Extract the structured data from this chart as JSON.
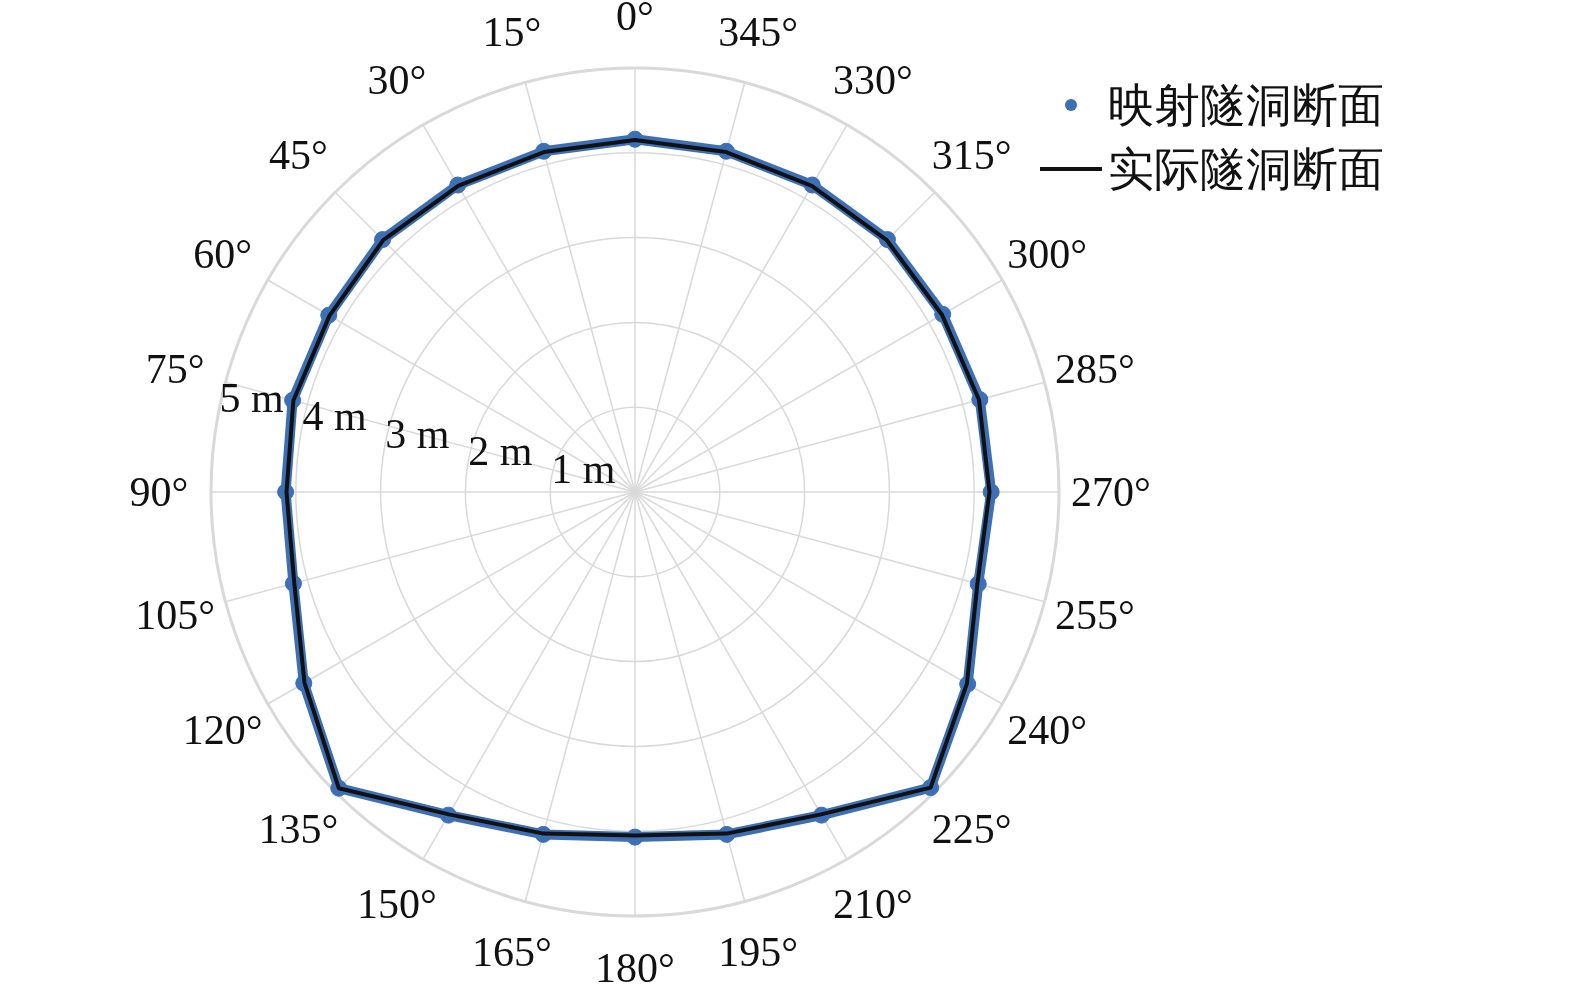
{
  "chart_data": {
    "type": "radar",
    "categories": [
      "0°",
      "345°",
      "330°",
      "315°",
      "300°",
      "285°",
      "270°",
      "255°",
      "240°",
      "225°",
      "210°",
      "195°",
      "180°",
      "165°",
      "150°",
      "135°",
      "120°",
      "105°",
      "90°",
      "75°",
      "60°",
      "45°",
      "30°",
      "15°"
    ],
    "series": [
      {
        "name": "实际隧洞断面",
        "color": "#111111",
        "marker": "none",
        "line_style": "solid",
        "values": [
          4.15,
          4.15,
          4.17,
          4.2,
          4.18,
          4.2,
          4.18,
          4.18,
          4.52,
          4.93,
          4.39,
          4.17,
          4.05,
          4.17,
          4.39,
          4.94,
          4.5,
          4.16,
          4.11,
          4.17,
          4.16,
          4.2,
          4.17,
          4.15
        ]
      },
      {
        "name": "映射隧洞断面",
        "color": "#3d6fb6",
        "marker": "circle",
        "line_style": "solid",
        "values": [
          4.16,
          4.16,
          4.18,
          4.21,
          4.19,
          4.21,
          4.2,
          4.19,
          4.53,
          4.93,
          4.4,
          4.18,
          4.07,
          4.18,
          4.4,
          4.94,
          4.51,
          4.17,
          4.12,
          4.18,
          4.17,
          4.21,
          4.18,
          4.16
        ]
      }
    ],
    "ylim": [
      0,
      5
    ],
    "yticks": [
      {
        "value": 1,
        "label": "1 m"
      },
      {
        "value": 2,
        "label": "2 m"
      },
      {
        "value": 3,
        "label": "3 m"
      },
      {
        "value": 4,
        "label": "4 m"
      },
      {
        "value": 5,
        "label": "5 m"
      }
    ],
    "grid": true,
    "legend": "top right"
  }
}
